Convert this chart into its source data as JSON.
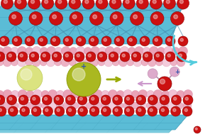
{
  "fig_width": 2.96,
  "fig_height": 1.89,
  "dpi": 100,
  "bg_color": "#ffffff",
  "blue_slab": "#5bbcd6",
  "blue_slab2": "#7dcde0",
  "blue_slab3": "#9dd8e5",
  "blue_slab4": "#b8e4ee",
  "red_col": "#cc1111",
  "red_edge": "#880000",
  "pink_col": "#e899b0",
  "pink_edge": "#cc7799",
  "pink_light": "#f0bbd0",
  "green_big": "#aab820",
  "green_small": "#ccd84a",
  "water_red": "#cc1111",
  "water_pink": "#ddaacc",
  "water_pink_edge": "#bb88aa",
  "cyan_arrow": "#55ccdd",
  "green_arrow": "#99aa00",
  "lavender_arrow": "#cc99cc"
}
